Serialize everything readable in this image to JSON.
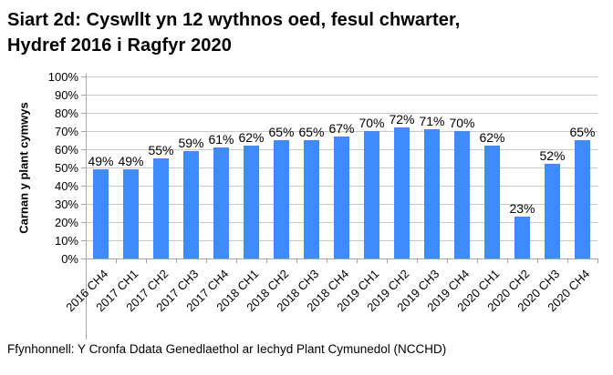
{
  "title": {
    "line1": "Siart 2d: Cyswllt yn 12 wythnos oed, fesul chwarter,",
    "line2": "Hydref 2016 i Ragfyr 2020"
  },
  "source": "Ffynhonnell: Y Cronfa Ddata Genedlaethol ar Iechyd Plant Cymunedol (NCCHD)",
  "chart_data": {
    "type": "bar",
    "title": "Siart 2d: Cyswllt yn 12 wythnos oed, fesul chwarter, Hydref 2016 i Ragfyr 2020",
    "categories": [
      "2016 CH4",
      "2017 CH1",
      "2017 CH2",
      "2017 CH3",
      "2017 CH4",
      "2018 CH1",
      "2018 CH2",
      "2018 CH3",
      "2018 CH4",
      "2019 CH1",
      "2019 CH2",
      "2019 CH3",
      "2019 CH4",
      "2020 CH1",
      "2020 CH2",
      "2020 CH3",
      "2020 CH4"
    ],
    "values": [
      49,
      49,
      55,
      59,
      61,
      62,
      65,
      65,
      67,
      70,
      72,
      71,
      70,
      62,
      23,
      52,
      65
    ],
    "data_labels": [
      "49%",
      "49%",
      "55%",
      "59%",
      "61%",
      "62%",
      "65%",
      "65%",
      "67%",
      "70%",
      "72%",
      "71%",
      "70%",
      "62%",
      "23%",
      "52%",
      "65%"
    ],
    "xlabel": "",
    "ylabel": "Carnan y plant cymwys",
    "ylim": [
      0,
      100
    ],
    "ytick_step": 10,
    "ytick_labels": [
      "0%",
      "10%",
      "20%",
      "30%",
      "40%",
      "50%",
      "60%",
      "70%",
      "80%",
      "90%",
      "100%"
    ],
    "grid": true,
    "legend": false,
    "bar_color": "#3D8BFD",
    "gridline_color": "#C9C9C9",
    "axis_color": "#A6A6A6",
    "text_color": "#000000"
  }
}
